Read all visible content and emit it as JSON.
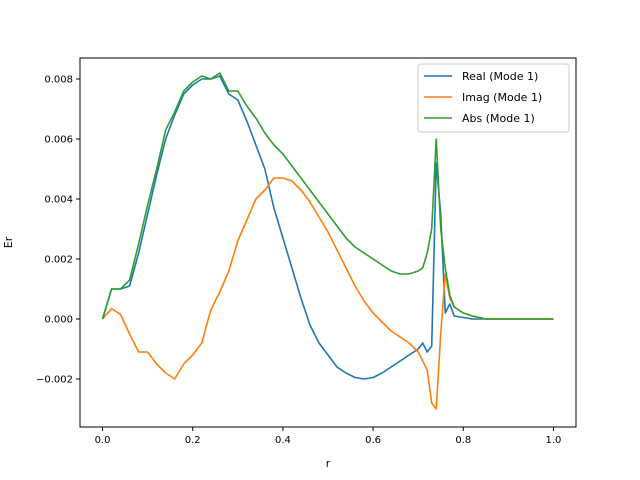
{
  "chart_data": {
    "type": "line",
    "title": "",
    "xlabel": "r",
    "ylabel": "Er",
    "xlim": [
      -0.05,
      1.05
    ],
    "ylim": [
      -0.0036,
      0.0087
    ],
    "xticks": [
      0.0,
      0.2,
      0.4,
      0.6,
      0.8,
      1.0
    ],
    "xtick_labels": [
      "0.0",
      "0.2",
      "0.4",
      "0.6",
      "0.8",
      "1.0"
    ],
    "yticks": [
      -0.002,
      0.0,
      0.002,
      0.004,
      0.006,
      0.008
    ],
    "ytick_labels": [
      "−0.002",
      "0.000",
      "0.002",
      "0.004",
      "0.006",
      "0.008"
    ],
    "grid": false,
    "legend": "top-right",
    "series": [
      {
        "name": "Real (Mode 1)",
        "color": "#1f77b4",
        "x": [
          0.0,
          0.02,
          0.04,
          0.06,
          0.08,
          0.1,
          0.12,
          0.14,
          0.16,
          0.18,
          0.2,
          0.22,
          0.24,
          0.26,
          0.28,
          0.3,
          0.32,
          0.34,
          0.36,
          0.38,
          0.4,
          0.42,
          0.44,
          0.46,
          0.48,
          0.5,
          0.52,
          0.54,
          0.56,
          0.58,
          0.6,
          0.62,
          0.64,
          0.66,
          0.68,
          0.7,
          0.71,
          0.72,
          0.73,
          0.74,
          0.75,
          0.76,
          0.77,
          0.78,
          0.8,
          0.82,
          0.85,
          0.9,
          0.95,
          1.0
        ],
        "y": [
          0.0,
          0.001,
          0.001,
          0.0011,
          0.0022,
          0.0035,
          0.0048,
          0.006,
          0.0068,
          0.0075,
          0.0078,
          0.008,
          0.008,
          0.0081,
          0.0075,
          0.0073,
          0.0066,
          0.0058,
          0.005,
          0.0037,
          0.0027,
          0.0017,
          0.0007,
          -0.0002,
          -0.0008,
          -0.0012,
          -0.0016,
          -0.0018,
          -0.00195,
          -0.002,
          -0.00195,
          -0.0018,
          -0.0016,
          -0.0014,
          -0.0012,
          -0.001,
          -0.0008,
          -0.0011,
          -0.0009,
          0.0052,
          0.0035,
          0.0002,
          0.0005,
          0.0001,
          5e-05,
          0.0,
          0.0,
          0.0,
          0.0,
          0.0
        ]
      },
      {
        "name": "Imag (Mode 1)",
        "color": "#ff7f0e",
        "x": [
          0.0,
          0.02,
          0.04,
          0.06,
          0.08,
          0.1,
          0.12,
          0.14,
          0.16,
          0.18,
          0.2,
          0.22,
          0.24,
          0.26,
          0.28,
          0.3,
          0.32,
          0.34,
          0.36,
          0.38,
          0.4,
          0.42,
          0.44,
          0.46,
          0.48,
          0.5,
          0.52,
          0.54,
          0.56,
          0.58,
          0.6,
          0.62,
          0.64,
          0.66,
          0.68,
          0.7,
          0.72,
          0.73,
          0.74,
          0.75,
          0.76,
          0.77,
          0.78,
          0.8,
          0.82,
          0.85,
          0.9,
          0.95,
          1.0
        ],
        "y": [
          0.0,
          0.00035,
          0.00015,
          -0.0005,
          -0.0011,
          -0.0011,
          -0.0015,
          -0.0018,
          -0.002,
          -0.0015,
          -0.0012,
          -0.0008,
          0.0003,
          0.0009,
          0.0016,
          0.0026,
          0.0033,
          0.004,
          0.0043,
          0.0047,
          0.0047,
          0.0046,
          0.0043,
          0.0039,
          0.0034,
          0.0029,
          0.0023,
          0.0017,
          0.0011,
          0.0006,
          0.0002,
          -0.0001,
          -0.0004,
          -0.0006,
          -0.0008,
          -0.0011,
          -0.0017,
          -0.0028,
          -0.003,
          -0.0005,
          0.0015,
          0.0007,
          0.0004,
          0.0002,
          0.0001,
          0.0,
          0.0,
          0.0,
          0.0
        ]
      },
      {
        "name": "Abs (Mode 1)",
        "color": "#2ca02c",
        "x": [
          0.0,
          0.02,
          0.04,
          0.06,
          0.08,
          0.1,
          0.12,
          0.14,
          0.16,
          0.18,
          0.2,
          0.22,
          0.24,
          0.26,
          0.28,
          0.3,
          0.32,
          0.34,
          0.36,
          0.38,
          0.4,
          0.42,
          0.44,
          0.46,
          0.48,
          0.5,
          0.52,
          0.54,
          0.56,
          0.58,
          0.6,
          0.62,
          0.64,
          0.66,
          0.68,
          0.7,
          0.71,
          0.72,
          0.73,
          0.74,
          0.75,
          0.76,
          0.77,
          0.78,
          0.8,
          0.82,
          0.85,
          0.9,
          0.95,
          1.0
        ],
        "y": [
          0.0,
          0.001,
          0.001,
          0.0013,
          0.0025,
          0.0038,
          0.005,
          0.0063,
          0.0069,
          0.0076,
          0.0079,
          0.0081,
          0.008,
          0.0082,
          0.0076,
          0.0076,
          0.0071,
          0.0067,
          0.0062,
          0.0058,
          0.0055,
          0.0051,
          0.0047,
          0.0043,
          0.0039,
          0.0035,
          0.0031,
          0.0027,
          0.0024,
          0.0022,
          0.002,
          0.0018,
          0.0016,
          0.0015,
          0.0015,
          0.0016,
          0.0017,
          0.0022,
          0.003,
          0.006,
          0.003,
          0.0017,
          0.0008,
          0.0004,
          0.0002,
          0.0001,
          0.0,
          0.0,
          0.0,
          0.0
        ]
      }
    ]
  }
}
